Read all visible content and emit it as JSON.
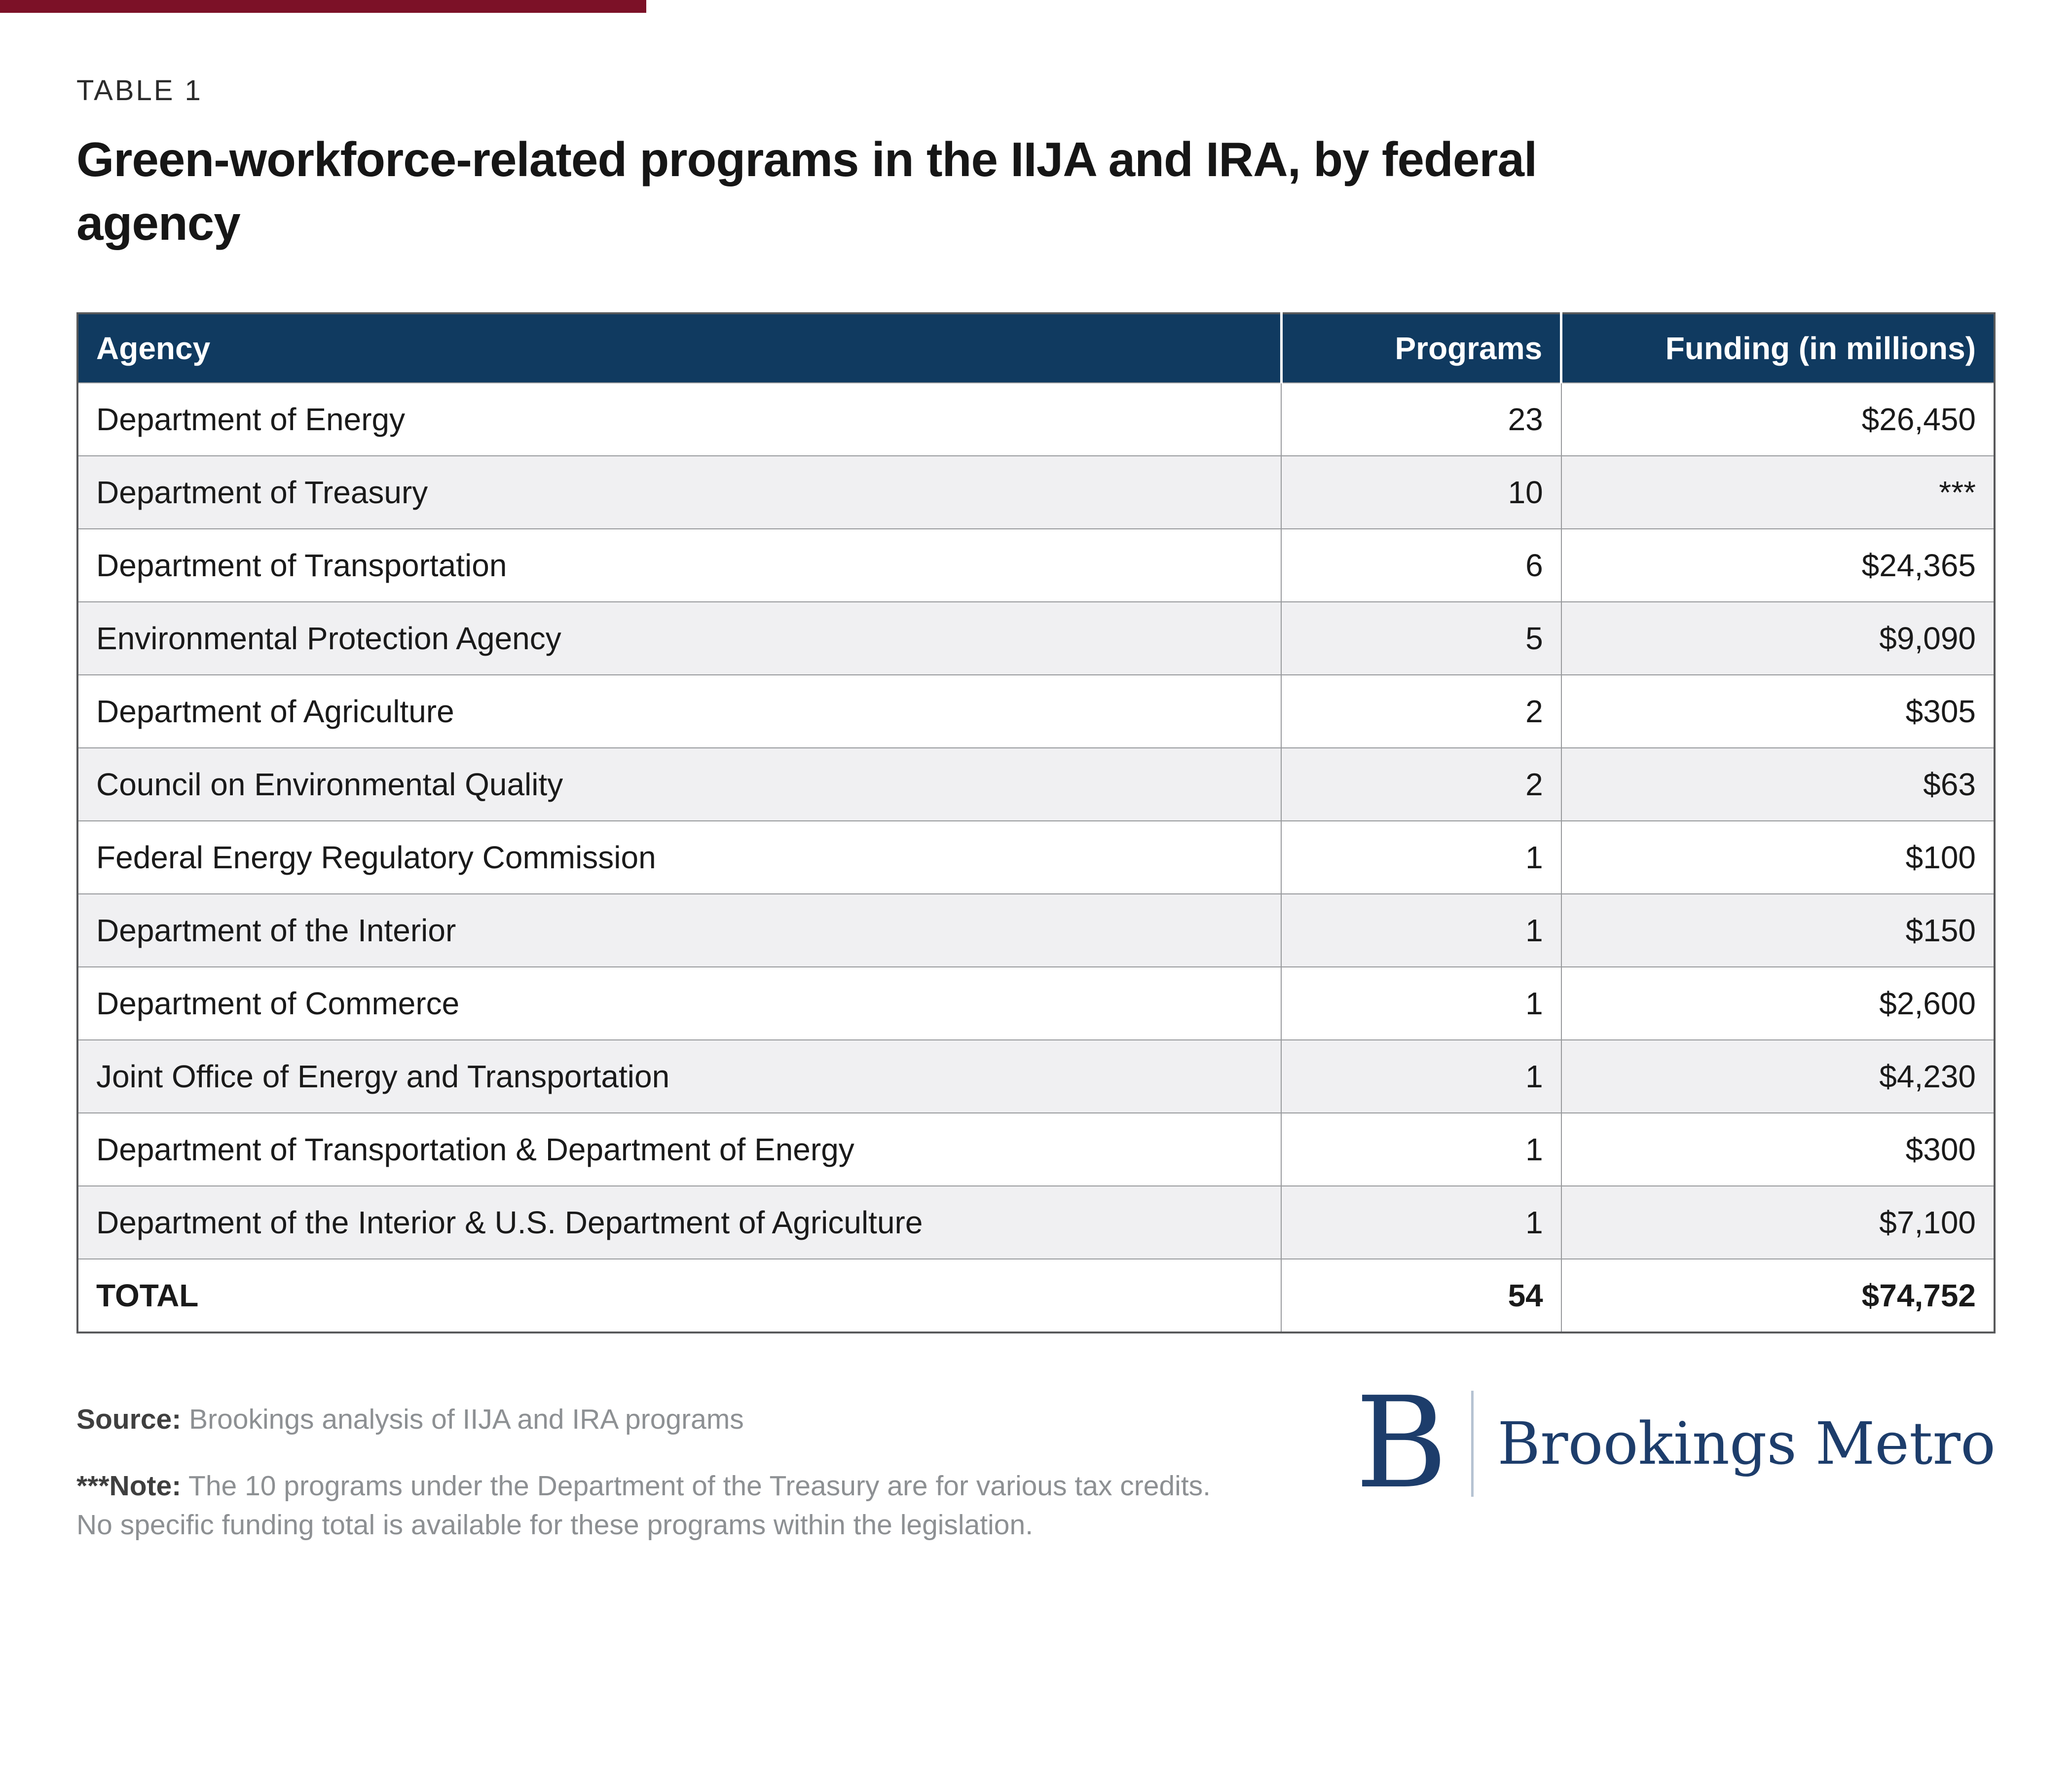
{
  "page": {
    "kicker": "TABLE 1",
    "title": "Green-workforce-related programs in the IIJA and IRA, by federal agency"
  },
  "chart_data": {
    "type": "table",
    "title": "Green-workforce-related programs in the IIJA and IRA, by federal agency",
    "columns": [
      "Agency",
      "Programs",
      "Funding (in millions)"
    ],
    "rows": [
      [
        "Department of Energy",
        "23",
        "$26,450"
      ],
      [
        "Department of Treasury",
        "10",
        "***"
      ],
      [
        "Department of Transportation",
        "6",
        "$24,365"
      ],
      [
        "Environmental Protection Agency",
        "5",
        "$9,090"
      ],
      [
        "Department of Agriculture",
        "2",
        "$305"
      ],
      [
        "Council on Environmental Quality",
        "2",
        "$63"
      ],
      [
        "Federal Energy Regulatory Commission",
        "1",
        "$100"
      ],
      [
        "Department of the Interior",
        "1",
        "$150"
      ],
      [
        "Department of Commerce",
        "1",
        "$2,600"
      ],
      [
        "Joint Office of Energy and Transportation",
        "1",
        "$4,230"
      ],
      [
        "Department of Transportation & Department of Energy",
        "1",
        "$300"
      ],
      [
        "Department of the Interior & U.S. Department of Agriculture",
        "1",
        "$7,100"
      ]
    ],
    "total_row": [
      "TOTAL",
      "54",
      "$74,752"
    ]
  },
  "footer": {
    "source_label": "Source:",
    "source_text": "Brookings analysis of IIJA and IRA programs",
    "note_label": "***Note:",
    "note_text": "The 10 programs under the Department of the Treasury are for various tax credits. No specific funding total is available for these programs within the legislation."
  },
  "logo": {
    "letter": "B",
    "wordmark": "Brookings Metro"
  },
  "colors": {
    "header_bg": "#103a60",
    "accent_red": "#7c1127",
    "row_alt": "#f0f0f2",
    "navy": "#1d3d6b",
    "border_inner": "#97999c",
    "border_outer": "#58595b",
    "text_gray": "#8d9093",
    "label_gray": "#3f3f3f",
    "divider_blue": "#b6c3d2"
  }
}
